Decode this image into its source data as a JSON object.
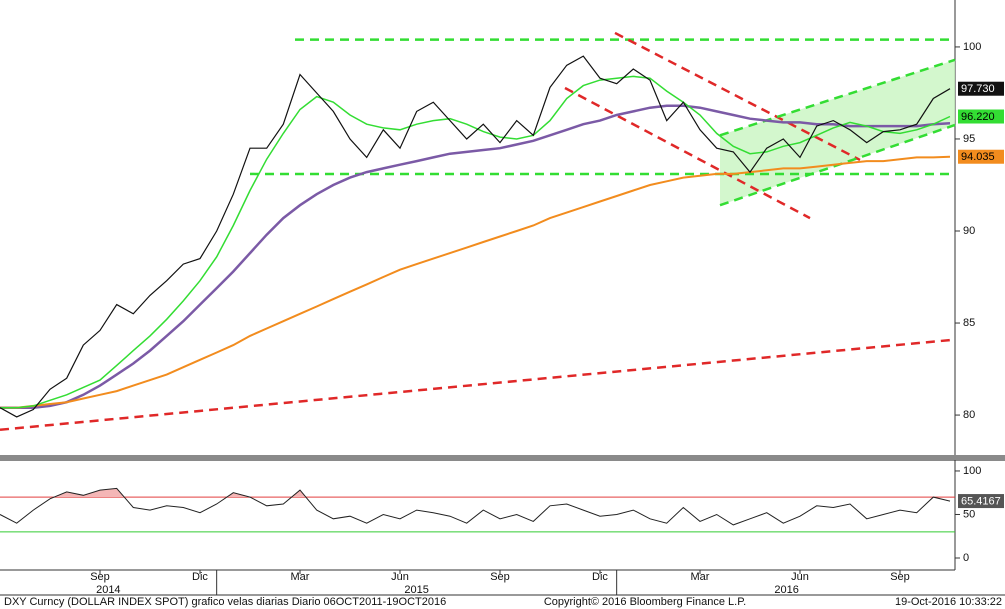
{
  "chart_data": [
    {
      "type": "line",
      "x": [
        0,
        0.5,
        1,
        1.5,
        2,
        2.5,
        3,
        3.5,
        4,
        4.5,
        5,
        5.5,
        6,
        6.5,
        7,
        7.5,
        8,
        8.5,
        9,
        9.5,
        10,
        10.5,
        11,
        11.5,
        12,
        12.5,
        13,
        13.5,
        14,
        14.5,
        15,
        15.5,
        16,
        16.5,
        17,
        17.5,
        18,
        18.5,
        19,
        19.5,
        20,
        20.5,
        21,
        21.5,
        22,
        22.5,
        23,
        23.5,
        24,
        24.5,
        25,
        25.5,
        26,
        26.5,
        27,
        27.5,
        28,
        28.5
      ],
      "xlim": [
        0,
        28.65
      ],
      "ylim": [
        77.83,
        102.55
      ],
      "yticks": [
        80,
        85,
        90,
        95,
        100
      ],
      "series": [
        {
          "color": "#7b5aa6",
          "width": 2.5,
          "values": [
            80.4,
            80.4,
            80.4,
            80.5,
            80.7,
            81.1,
            81.6,
            82.2,
            82.8,
            83.5,
            84.3,
            85.1,
            86.0,
            86.9,
            87.8,
            88.8,
            89.8,
            90.7,
            91.4,
            92.0,
            92.5,
            92.9,
            93.2,
            93.4,
            93.6,
            93.8,
            94.0,
            94.2,
            94.3,
            94.4,
            94.5,
            94.7,
            94.9,
            95.2,
            95.5,
            95.8,
            96.0,
            96.3,
            96.5,
            96.7,
            96.8,
            96.8,
            96.7,
            96.5,
            96.3,
            96.1,
            96.0,
            95.9,
            95.9,
            95.8,
            95.8,
            95.7,
            95.7,
            95.7,
            95.7,
            95.7,
            95.8,
            95.85
          ]
        },
        {
          "color": "#f28c1e",
          "width": 2,
          "tag_color": "#f28c1e",
          "tag_text": "#000000",
          "last_label": "94.035",
          "values": [
            80.4,
            80.4,
            80.5,
            80.6,
            80.7,
            80.9,
            81.1,
            81.3,
            81.6,
            81.9,
            82.2,
            82.6,
            83.0,
            83.4,
            83.8,
            84.3,
            84.7,
            85.1,
            85.5,
            85.9,
            86.3,
            86.7,
            87.1,
            87.5,
            87.9,
            88.2,
            88.5,
            88.8,
            89.1,
            89.4,
            89.7,
            90.0,
            90.3,
            90.7,
            91.0,
            91.3,
            91.6,
            91.9,
            92.2,
            92.5,
            92.7,
            92.9,
            93.0,
            93.1,
            93.1,
            93.2,
            93.3,
            93.4,
            93.4,
            93.5,
            93.6,
            93.7,
            93.8,
            93.8,
            93.9,
            94.0,
            94.0,
            94.035
          ]
        },
        {
          "color": "#33dd33",
          "width": 1.5,
          "tag_color": "#33dd33",
          "tag_text": "#000000",
          "last_label": "96.220",
          "values": [
            80.4,
            80.4,
            80.5,
            80.8,
            81.1,
            81.5,
            81.9,
            82.7,
            83.5,
            84.3,
            85.2,
            86.2,
            87.3,
            88.6,
            90.3,
            92.2,
            93.9,
            95.3,
            96.6,
            97.3,
            97.0,
            96.3,
            95.8,
            95.6,
            95.5,
            95.8,
            96.0,
            96.1,
            95.8,
            95.4,
            95.1,
            95.0,
            95.2,
            96.0,
            97.2,
            97.9,
            98.2,
            98.3,
            98.4,
            98.3,
            97.6,
            97.0,
            96.3,
            95.3,
            94.6,
            94.2,
            94.3,
            94.6,
            94.8,
            95.2,
            95.6,
            95.9,
            95.7,
            95.4,
            95.3,
            95.5,
            95.8,
            96.22
          ]
        },
        {
          "color": "#111111",
          "width": 1.2,
          "tag_color": "#111111",
          "tag_text": "#ffffff",
          "last_label": "97.730",
          "values": [
            80.4,
            79.9,
            80.3,
            81.4,
            82.0,
            83.8,
            84.6,
            86.0,
            85.5,
            86.5,
            87.3,
            88.2,
            88.5,
            90.0,
            92.0,
            94.5,
            94.5,
            95.8,
            98.5,
            97.5,
            96.5,
            95.0,
            94.0,
            95.5,
            94.5,
            96.5,
            97.0,
            96.0,
            95.0,
            95.8,
            94.8,
            96.0,
            95.2,
            97.8,
            99.0,
            99.5,
            98.3,
            98.0,
            98.8,
            98.2,
            96.0,
            97.0,
            95.5,
            94.5,
            94.3,
            93.2,
            94.5,
            95.0,
            94.0,
            95.7,
            96.0,
            95.5,
            94.8,
            95.4,
            95.5,
            95.8,
            97.2,
            97.73
          ]
        }
      ],
      "trendlines": [
        {
          "color": "#33dd33",
          "x": [
            8.85,
            28.65
          ],
          "values": [
            100.4,
            100.4
          ]
        },
        {
          "color": "#33dd33",
          "x": [
            7.5,
            28.65
          ],
          "values": [
            93.1,
            93.1
          ]
        },
        {
          "color": "#e02828",
          "x": [
            0,
            28.65
          ],
          "values": [
            79.2,
            84.1
          ]
        },
        {
          "color": "#e02828",
          "x": [
            18.45,
            25.8
          ],
          "values": [
            100.76,
            93.86
          ]
        },
        {
          "color": "#e02828",
          "x": [
            16.95,
            24.3
          ],
          "values": [
            97.77,
            90.7
          ]
        },
        {
          "color": "#33dd33",
          "x": [
            21.6,
            28.65
          ],
          "values": [
            95.2,
            99.3
          ]
        },
        {
          "color": "#33dd33",
          "x": [
            21.6,
            28.65
          ],
          "values": [
            91.4,
            95.76
          ]
        }
      ],
      "channel": [
        5,
        6
      ],
      "channel_color": "#c8f5c0"
    },
    {
      "type": "line",
      "x": [
        0,
        0.5,
        1,
        1.5,
        2,
        2.5,
        3,
        3.5,
        4,
        4.5,
        5,
        5.5,
        6,
        6.5,
        7,
        7.5,
        8,
        8.5,
        9,
        9.5,
        10,
        10.5,
        11,
        11.5,
        12,
        12.5,
        13,
        13.5,
        14,
        14.5,
        15,
        15.5,
        16,
        16.5,
        17,
        17.5,
        18,
        18.5,
        19,
        19.5,
        20,
        20.5,
        21,
        21.5,
        22,
        22.5,
        23,
        23.5,
        24,
        24.5,
        25,
        25.5,
        26,
        26.5,
        27,
        27.5,
        28,
        28.5
      ],
      "xlim": [
        0,
        28.65
      ],
      "ylim": [
        -13.8,
        112.6
      ],
      "yticks": [
        0,
        50,
        100
      ],
      "hlines": [
        {
          "value": 70,
          "color": "#e03030"
        },
        {
          "value": 30,
          "color": "#33cc33"
        }
      ],
      "overbought_fill": "#f4b6b6",
      "series": [
        {
          "color": "#222222",
          "width": 1,
          "tag_color": "#555555",
          "tag_text": "#ffffff",
          "last_label": "65.4167",
          "values": [
            50,
            40,
            55,
            68,
            76,
            72,
            78,
            80,
            58,
            55,
            60,
            58,
            52,
            62,
            75,
            70,
            60,
            62,
            78,
            55,
            45,
            48,
            40,
            50,
            45,
            55,
            52,
            48,
            40,
            55,
            45,
            50,
            42,
            60,
            62,
            55,
            48,
            50,
            55,
            45,
            40,
            58,
            42,
            50,
            38,
            45,
            52,
            40,
            48,
            60,
            58,
            62,
            45,
            50,
            55,
            52,
            70,
            65.4167
          ]
        }
      ]
    }
  ],
  "x_axis": {
    "xticks": [
      {
        "value": 3,
        "label": "Sep"
      },
      {
        "value": 6,
        "label": "Dic"
      },
      {
        "value": 9,
        "label": "Mar"
      },
      {
        "value": 12,
        "label": "Jun"
      },
      {
        "value": 15,
        "label": "Sep"
      },
      {
        "value": 18,
        "label": "Dic"
      },
      {
        "value": 21,
        "label": "Mar"
      },
      {
        "value": 24,
        "label": "Jun"
      },
      {
        "value": 27,
        "label": "Sep"
      }
    ],
    "years": [
      {
        "value": 3.25,
        "label": "2014"
      },
      {
        "value": 12.5,
        "label": "2015"
      },
      {
        "value": 23.6,
        "label": "2016"
      }
    ],
    "year_dividers": [
      6.5,
      18.5
    ]
  },
  "footer": {
    "left": "DXY Curncy (DOLLAR INDEX SPOT) grafico velas diarias  Diario 06OCT2011-19OCT2016",
    "center": "Copyright© 2016 Bloomberg Finance L.P.",
    "right": "19-Oct-2016 10:33:22"
  }
}
